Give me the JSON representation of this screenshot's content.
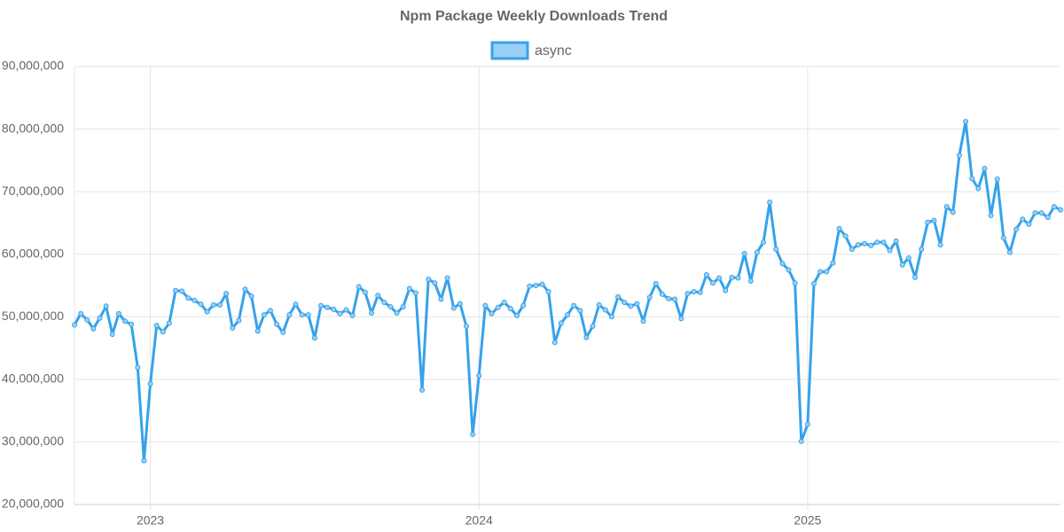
{
  "chart_data": {
    "type": "line",
    "title": "Npm Package Weekly Downloads Trend",
    "categories": [
      null,
      null,
      null,
      null,
      null,
      null,
      null,
      null,
      null,
      null,
      null,
      null,
      "2023",
      null,
      null,
      null,
      null,
      null,
      null,
      null,
      null,
      null,
      null,
      null,
      null,
      null,
      null,
      null,
      null,
      null,
      null,
      null,
      null,
      null,
      null,
      null,
      null,
      null,
      null,
      null,
      null,
      null,
      null,
      null,
      null,
      null,
      null,
      null,
      null,
      null,
      null,
      null,
      null,
      null,
      null,
      null,
      null,
      null,
      null,
      null,
      null,
      null,
      null,
      null,
      "2024",
      null,
      null,
      null,
      null,
      null,
      null,
      null,
      null,
      null,
      null,
      null,
      null,
      null,
      null,
      null,
      null,
      null,
      null,
      null,
      null,
      null,
      null,
      null,
      null,
      null,
      null,
      null,
      null,
      null,
      null,
      null,
      null,
      null,
      null,
      null,
      null,
      null,
      null,
      null,
      null,
      null,
      null,
      null,
      null,
      null,
      null,
      null,
      null,
      null,
      null,
      null,
      "2025",
      null,
      null,
      null,
      null,
      null,
      null,
      null,
      null,
      null,
      null,
      null,
      null,
      null,
      null,
      null,
      null,
      null,
      null,
      null,
      null,
      null,
      null,
      null,
      null,
      null,
      null,
      null,
      null,
      null,
      null,
      null,
      null,
      null,
      null,
      null,
      null,
      null,
      null,
      null,
      null
    ],
    "series": [
      {
        "name": "async",
        "color": "#36a2eb",
        "fill": "#9ad0f5",
        "values": [
          48700000,
          50500000,
          49500000,
          48100000,
          49800000,
          51700000,
          47200000,
          50500000,
          49300000,
          48800000,
          41900000,
          27000000,
          39300000,
          48600000,
          47600000,
          49000000,
          54200000,
          54100000,
          53000000,
          52600000,
          52000000,
          50800000,
          51900000,
          51900000,
          53700000,
          48200000,
          49400000,
          54400000,
          53300000,
          47700000,
          50300000,
          51000000,
          48800000,
          47500000,
          50300000,
          52000000,
          50300000,
          50300000,
          46600000,
          51800000,
          51500000,
          51200000,
          50500000,
          51100000,
          50200000,
          54800000,
          53900000,
          50600000,
          53400000,
          52300000,
          51600000,
          50600000,
          51600000,
          54500000,
          53800000,
          38300000,
          56000000,
          55400000,
          52800000,
          56200000,
          51400000,
          52100000,
          48500000,
          31200000,
          40600000,
          51800000,
          50500000,
          51500000,
          52300000,
          51300000,
          50200000,
          51800000,
          54900000,
          55000000,
          55200000,
          54000000,
          45900000,
          49000000,
          50300000,
          51800000,
          51000000,
          46700000,
          48500000,
          51900000,
          51100000,
          50000000,
          53200000,
          52300000,
          51700000,
          52100000,
          49300000,
          53100000,
          55300000,
          53600000,
          52900000,
          52800000,
          49700000,
          53700000,
          54000000,
          53900000,
          56700000,
          55400000,
          56200000,
          54200000,
          56300000,
          56200000,
          60100000,
          55700000,
          60300000,
          61900000,
          68300000,
          60800000,
          58500000,
          57500000,
          55400000,
          30100000,
          32800000,
          55300000,
          57200000,
          57200000,
          58600000,
          64100000,
          62900000,
          60800000,
          61500000,
          61700000,
          61400000,
          61900000,
          61900000,
          60600000,
          62100000,
          58300000,
          59400000,
          56300000,
          60800000,
          65100000,
          65400000,
          61500000,
          67600000,
          66700000,
          75800000,
          81200000,
          72100000,
          70500000,
          73700000,
          66200000,
          72000000,
          62600000,
          60300000,
          64000000,
          65600000,
          64800000,
          66600000,
          66600000,
          65900000,
          67600000,
          67100000
        ]
      }
    ],
    "ylim": [
      20000000,
      90000000
    ],
    "yticks": [
      {
        "value": 20000000,
        "label": "20,000,000"
      },
      {
        "value": 30000000,
        "label": "30,000,000"
      },
      {
        "value": 40000000,
        "label": "40,000,000"
      },
      {
        "value": 50000000,
        "label": "50,000,000"
      },
      {
        "value": 60000000,
        "label": "60,000,000"
      },
      {
        "value": 70000000,
        "label": "70,000,000"
      },
      {
        "value": 80000000,
        "label": "80,000,000"
      },
      {
        "value": 90000000,
        "label": "90,000,000"
      }
    ],
    "grid": true,
    "legend": "top"
  }
}
